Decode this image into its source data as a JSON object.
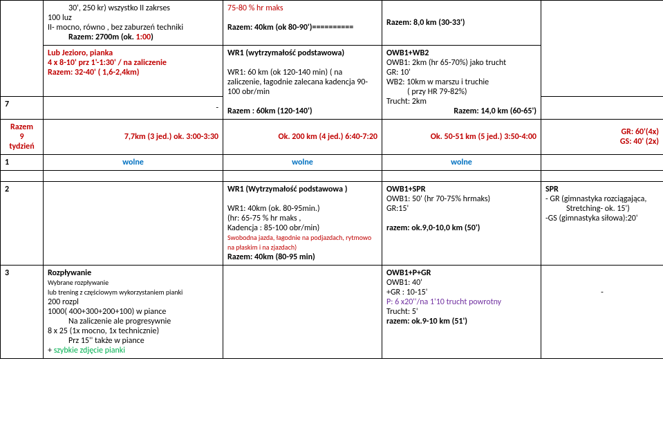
{
  "r1": {
    "c1": {
      "l1a": "30', 250 kr) wszystko II zakrses",
      "l2": "100 luz",
      "l3": "II- mocno, równo , bez zaburzeń techniki",
      "l4a": "Razem: 2700m (ok. ",
      "l4b": "1:00",
      "l4c": ")"
    },
    "c2": {
      "l1": "75-80 % hr maks",
      "l2": "Razem: 40km (ok 80-90')=========="
    },
    "c3": {
      "l1": "Razem: 8,0 km (30-33')"
    }
  },
  "r2": {
    "c0": "7",
    "c1": {
      "l1": "Lub Jezioro, pianka",
      "l2": "4 x 8-10' prz  1'-1:30' / na zaliczenie",
      "l3": "Razem: 32-40' ( 1,6-2,4km)",
      "l4": "-"
    },
    "c2": {
      "l1": "WR1 (wytrzymałość podstawowa)",
      "l2": "WR1: 60 km (ok 120-140 min) ( na zaliczenie, łagodnie zalecana kadencja 90-100 obr/min",
      "l3": "Razem : 60km (120-140')"
    },
    "c3": {
      "l1": "OWB1+WB2",
      "l2": "OWB1: 2km (hr 65-70%) jako trucht",
      "l3": "GR: 10'",
      "l4": "WB2: 10km  w marszu i truchie",
      "l5": "( przy HR 79-82%)",
      "l6": "Trucht: 2km",
      "l7": "Razem: 14,0 km (60-65')"
    }
  },
  "r3": {
    "c0a": "Razem",
    "c0b": "9",
    "c0c": "tydzień",
    "c1": "7,7km (3 jed.) ok. 3:00-3:30",
    "c2": "Ok. 200 km (4 jed.) 6:40-7:20",
    "c3": "Ok. 50-51 km (5 jed.) 3:50-4:00",
    "c4a": "GR: 60'(4x)",
    "c4b": "GS: 40' (2x)"
  },
  "r4": {
    "c0": "1",
    "c1": "wolne",
    "c2": "wolne",
    "c3": "wolne"
  },
  "r5": {
    "c0": "2",
    "c2": {
      "l1": "WR1 (Wytrzymałość podstawowa )",
      "l2": "WR1: 40km (ok. 80-95min.)",
      "l3": " (hr: 65-75 % hr maks ,",
      "l4": "Kadencja : 85-100 obr/min)",
      "l5": "Swobodna jazda, łagodnie  na podjazdach, rytmowo na płaskim i na zjazdach)",
      "l6": "Razem: 40km (80-95 min)"
    },
    "c3": {
      "l1": "OWB1+SPR",
      "l2": "OWB1: 50' (hr 70-75% hrmaks)",
      "l3": "GR:15'",
      "l4": "razem: ok.9,0-10,0 km (50')"
    },
    "c4": {
      "l1": "SPR",
      "l2": "- GR (gimnastyka rozciągająca,",
      "l3": "Stretching- ok. 15')",
      "l4": "-GS (gimnastyka siłowa):20'"
    }
  },
  "r6": {
    "c0": "3",
    "c1": {
      "l1": "Rozpływanie",
      "l2": "Wybrane rozpływanie",
      "l3": "lub trening z częściowym wykorzystaniem pianki",
      "l4": "200 rozpl",
      "l5": "1000( 400+300+200+100) w piance",
      "l6": "Na zaliczenie ale progresywnie",
      "l7": "8 x 25 (1x mocno, 1x technicznie)",
      "l8": "Prz 15'' także w piance",
      "l9a": "+ ",
      "l9b": "szybkie zdjęcie pianki"
    },
    "c3": {
      "l1": "OWB1+P+GR",
      "l2": "OWB1: 40'",
      "l3": "+GR : 10-15'",
      "l4": "P: 6 x20''/na 1'10 trucht powrotny",
      "l5": "Trucht: 5'",
      "l6": "razem: ok.9-10 km (51')"
    },
    "c4": "-"
  }
}
